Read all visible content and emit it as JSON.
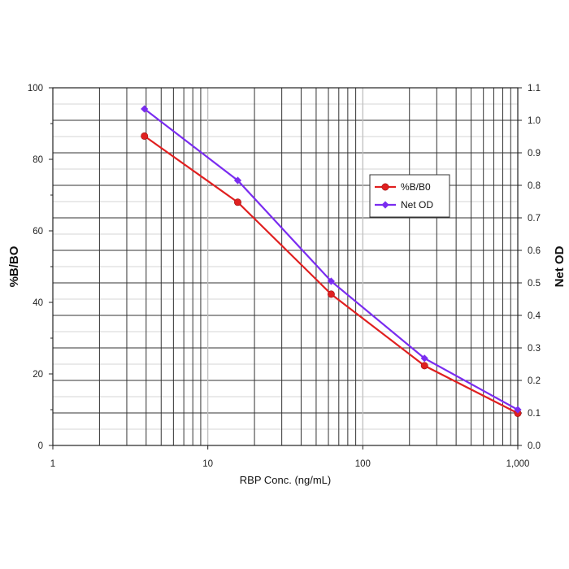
{
  "chart_data": {
    "type": "line",
    "x_scale": "log",
    "xlabel": "RBP Conc. (ng/mL)",
    "ylabel": "%B/BO",
    "y2label": "Net OD",
    "xlim": [
      1,
      1000
    ],
    "ylim": [
      0,
      100
    ],
    "y2lim": [
      0,
      1.1
    ],
    "x_tick_labels": [
      "1",
      "10",
      "100",
      "1,000"
    ],
    "x_tick_values": [
      1,
      10,
      100,
      1000
    ],
    "y_tick_labels": [
      "0",
      "20",
      "40",
      "60",
      "80",
      "100"
    ],
    "y_tick_values": [
      0,
      20,
      40,
      60,
      80,
      100
    ],
    "y2_tick_labels": [
      "0.0",
      "0.1",
      "0.2",
      "0.3",
      "0.4",
      "0.5",
      "0.6",
      "0.7",
      "0.8",
      "0.9",
      "1.0",
      "1.1"
    ],
    "y2_tick_values": [
      0,
      0.1,
      0.2,
      0.3,
      0.4,
      0.5,
      0.6,
      0.7,
      0.8,
      0.9,
      1.0,
      1.1
    ],
    "grid": true,
    "legend_position": "right-center",
    "x": [
      3.9,
      15.6,
      62.5,
      250,
      1000
    ],
    "series": [
      {
        "name": "%B/B0",
        "axis": "left",
        "marker": "circle",
        "color": "#e02020",
        "values": [
          86.5,
          68,
          42.3,
          22.3,
          9
        ]
      },
      {
        "name": "Net OD",
        "axis": "right",
        "marker": "diamond",
        "color": "#7a2cf0",
        "values": [
          1.035,
          0.815,
          0.505,
          0.268,
          0.11
        ]
      }
    ]
  }
}
